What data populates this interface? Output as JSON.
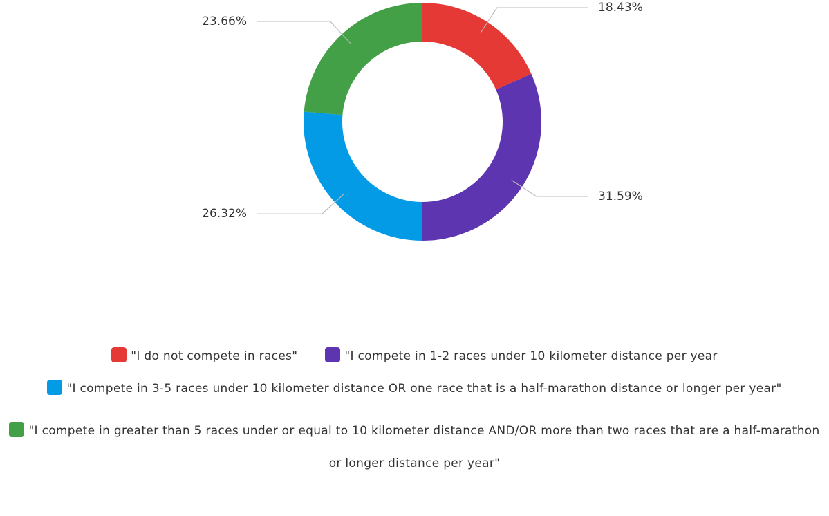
{
  "chart_data": {
    "type": "donut",
    "categories": [
      "\"I do not compete in races\"",
      "\"I compete in 1-2 races under 10 kilometer distance per year",
      "\"I compete in 3-5 races under 10 kilometer distance OR one race that is a half-marathon distance or longer per year\"",
      "\"I compete in greater than 5 races under or equal to 10 kilometer distance AND/OR more than two races that are a half-marathon or longer distance per year\""
    ],
    "values": [
      18.43,
      31.59,
      26.32,
      23.66
    ],
    "value_labels": [
      "18.43%",
      "31.59%",
      "26.32%",
      "23.66%"
    ],
    "colors": [
      "#e53935",
      "#5e35b1",
      "#039be5",
      "#43a047"
    ],
    "legend": "bottom"
  }
}
